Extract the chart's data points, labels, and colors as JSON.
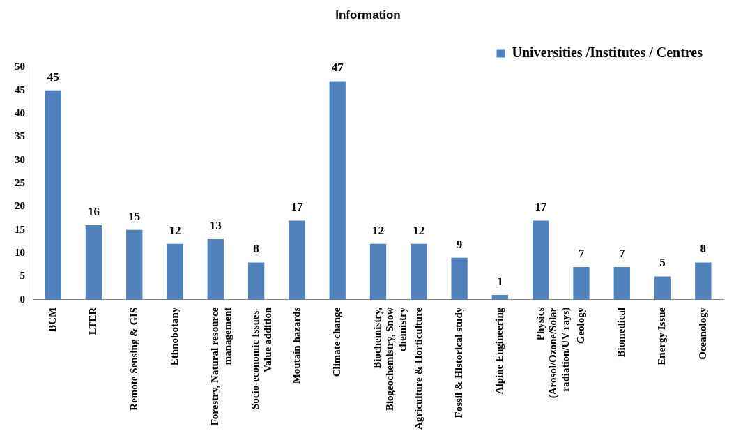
{
  "chart_data": {
    "type": "bar",
    "title": "Information",
    "categories": [
      "BCM",
      "LTER",
      "Remote Sensing & GIS",
      "Ethnobotany",
      "Forestry, Natural resource management",
      "Socio-economic Issues- Value addition",
      "Moutain hazards",
      "Climate change",
      "Biochemistry, Biogeochemistry, Snow chemistry",
      "Agriculture & Horticulture",
      "Fossil & Historical study",
      "Alpine Engineering",
      "Physics (Arosol/Ozone/Solar radiation/UV rays)",
      "Geology",
      "Biomedical",
      "Energy Issue",
      "Oceanology"
    ],
    "series": [
      {
        "name": "Universities /Institutes / Centres",
        "color": "#4f81bd",
        "values": [
          45,
          16,
          15,
          12,
          13,
          8,
          17,
          47,
          12,
          12,
          9,
          1,
          17,
          7,
          7,
          5,
          8
        ]
      }
    ],
    "ylim": [
      0,
      50
    ],
    "yticks": [
      0,
      5,
      10,
      15,
      20,
      25,
      30,
      35,
      40,
      45,
      50
    ],
    "data_labels": true,
    "legend": "top right",
    "grid": false
  }
}
